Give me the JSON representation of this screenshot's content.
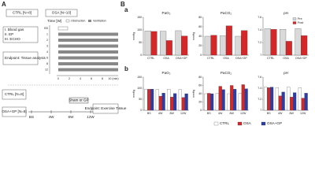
{
  "panel_a": {
    "label": "A",
    "ctrl": "CTRL [N=8]",
    "osa": "OSA [N=10]",
    "time_label": "Time [W]",
    "legend": [
      "Obstruction",
      "Ventilation"
    ],
    "steps": [
      "I. Blood gas",
      "II. EP",
      "III. ECHO"
    ],
    "endpoint": "Endpoint: Tissue analysis",
    "rows": [
      "BS",
      "1",
      "2",
      "3",
      "4",
      "6",
      "8",
      "12"
    ],
    "minutes": [
      "0",
      "2",
      "4",
      "6",
      "8",
      "10 (min)"
    ],
    "lower_ctrl": "CTRL [N=8]",
    "lower_osa": "OSA+GP [N=8]",
    "timeline": [
      "BS",
      "4W",
      "8W",
      "12W"
    ],
    "treatment": "Sham or GP",
    "lower_endpoint": "Endpoint: Exercise Tissue"
  },
  "panel_b": {
    "label": "B",
    "sub_a": {
      "label": "a",
      "categories": [
        "CTRL",
        "OSA",
        "OSA+GP"
      ],
      "series_names": [
        "Pre",
        "Post"
      ],
      "colors": [
        "#d9d9d9",
        "#d62728"
      ],
      "charts": [
        {
          "title": "PaO₂",
          "y_label": "mmHg",
          "ylim": [
            0,
            150
          ],
          "yticks": [
            0,
            50,
            100,
            150
          ],
          "values": [
            [
              96,
              95,
              97
            ],
            [
              94,
              58,
              76
            ]
          ]
        },
        {
          "title": "PaCO₂",
          "y_label": "mmHg",
          "ylim": [
            0,
            80
          ],
          "yticks": [
            0,
            20,
            40,
            60,
            80
          ],
          "values": [
            [
              40,
              41,
              40
            ],
            [
              42,
              62,
              52
            ]
          ]
        },
        {
          "title": "pH",
          "y_label": "",
          "ylim": [
            7.0,
            7.6
          ],
          "yticks": [
            7.0,
            7.2,
            7.4,
            7.6
          ],
          "values": [
            [
              7.42,
              7.41,
              7.42
            ],
            [
              7.41,
              7.22,
              7.31
            ]
          ]
        }
      ]
    },
    "sub_b": {
      "label": "b",
      "categories": [
        "BS",
        "4W",
        "8W",
        "12W"
      ],
      "series_names": [
        "CTRL",
        "OSA",
        "OSA+GP"
      ],
      "colors": [
        "#ffffff",
        "#d62728",
        "#2b3ea8"
      ],
      "charts": [
        {
          "title": "PaO₂",
          "y_label": "mmHg",
          "ylim": [
            0,
            150
          ],
          "yticks": [
            0,
            50,
            100,
            150
          ],
          "values": [
            [
              96,
              95,
              96,
              95
            ],
            [
              95,
              64,
              60,
              58
            ],
            [
              96,
              78,
              76,
              75
            ]
          ]
        },
        {
          "title": "PaCO₂",
          "y_label": "mmHg",
          "ylim": [
            0,
            80
          ],
          "yticks": [
            0,
            20,
            40,
            60,
            80
          ],
          "values": [
            [
              40,
              41,
              40,
              41
            ],
            [
              41,
              58,
              60,
              62
            ],
            [
              40,
              50,
              51,
              52
            ]
          ]
        },
        {
          "title": "pH",
          "y_label": "",
          "ylim": [
            7.0,
            7.6
          ],
          "yticks": [
            7.0,
            7.2,
            7.4,
            7.6
          ],
          "values": [
            [
              7.42,
              7.41,
              7.42,
              7.41
            ],
            [
              7.41,
              7.26,
              7.24,
              7.22
            ],
            [
              7.42,
              7.33,
              7.32,
              7.31
            ]
          ]
        }
      ]
    }
  }
}
